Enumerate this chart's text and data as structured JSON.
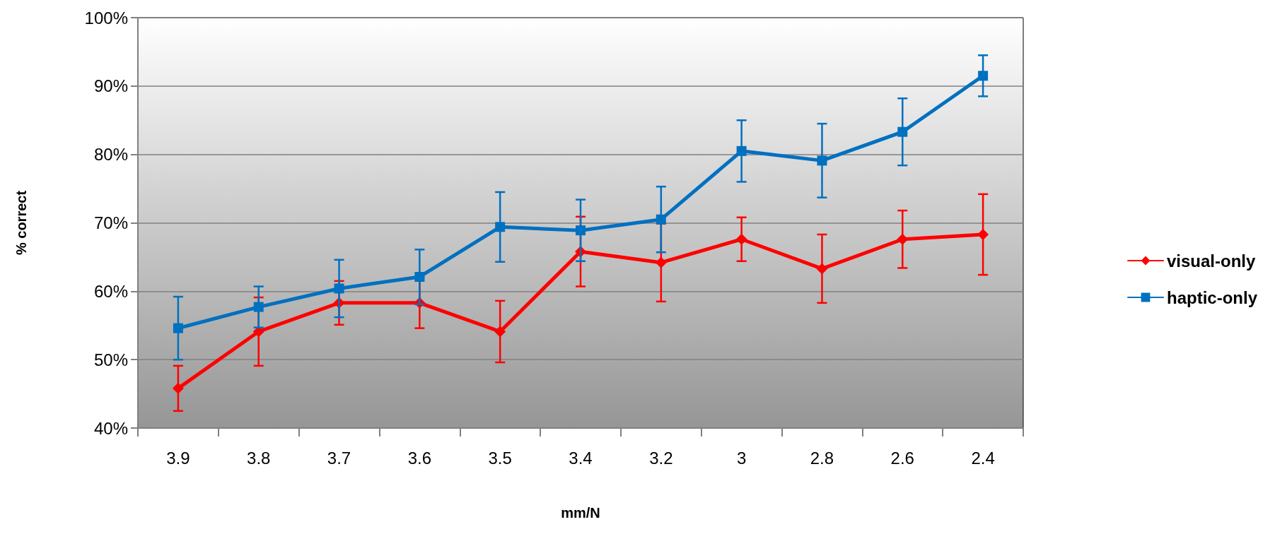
{
  "chart_data": {
    "type": "line",
    "xlabel": "mm/N",
    "ylabel": "% correct",
    "categories": [
      "3.9",
      "3.8",
      "3.7",
      "3.6",
      "3.5",
      "3.4",
      "3.2",
      "3",
      "2.8",
      "2.6",
      "2.4"
    ],
    "series": [
      {
        "name": "visual-only",
        "color": "#ff0000",
        "marker": "diamond",
        "values": [
          45.8,
          54.1,
          58.3,
          58.3,
          54.1,
          65.8,
          64.2,
          67.6,
          63.3,
          67.6,
          68.3
        ],
        "errors": [
          3.3,
          5.0,
          3.2,
          3.7,
          4.5,
          5.1,
          5.7,
          3.2,
          5.0,
          4.2,
          5.9
        ]
      },
      {
        "name": "haptic-only",
        "color": "#0070c0",
        "marker": "square",
        "values": [
          54.6,
          57.7,
          60.4,
          62.1,
          69.4,
          68.9,
          70.5,
          80.5,
          79.1,
          83.3,
          91.5
        ],
        "errors": [
          4.6,
          3.0,
          4.2,
          4.0,
          5.1,
          4.5,
          4.8,
          4.5,
          5.4,
          4.9,
          3.0
        ]
      }
    ],
    "ylim": [
      40,
      100
    ],
    "yticks": [
      {
        "value": 40,
        "label": "40%"
      },
      {
        "value": 50,
        "label": "50%"
      },
      {
        "value": 60,
        "label": "60%"
      },
      {
        "value": 70,
        "label": "70%"
      },
      {
        "value": 80,
        "label": "80%"
      },
      {
        "value": 90,
        "label": "90%"
      },
      {
        "value": 100,
        "label": "100%"
      }
    ],
    "grid": "y",
    "legend": "right",
    "line_style": "solid"
  }
}
